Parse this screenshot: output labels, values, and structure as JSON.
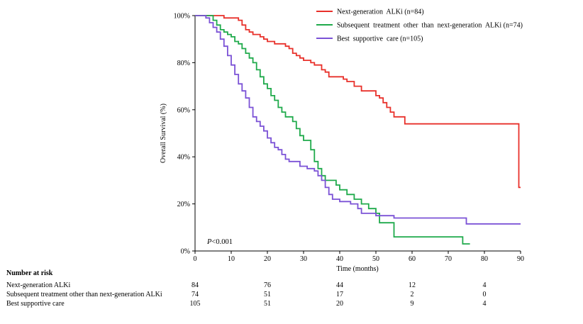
{
  "chart_data": {
    "type": "line",
    "xlabel": "Time (months)",
    "ylabel": "Overall Survival (%)",
    "xlim": [
      0,
      90
    ],
    "ylim": [
      0,
      100
    ],
    "x_ticks": [
      0,
      10,
      20,
      30,
      40,
      50,
      60,
      70,
      80,
      90
    ],
    "x_tick_labels": [
      "0",
      "10",
      "20",
      "30",
      "40",
      "50",
      "60",
      "70",
      "80",
      "90"
    ],
    "y_ticks": [
      0,
      20,
      40,
      60,
      80,
      100
    ],
    "y_tick_labels": [
      "0%",
      "20%",
      "40%",
      "60%",
      "80%",
      "100%"
    ],
    "annotation": "P<0.001",
    "annotation_italic": "P",
    "annotation_rest": "<0.001",
    "legend_position": "top-right",
    "series": [
      {
        "name": "Next-generation  ALKi (n=84)",
        "color": "#e8302a",
        "points": [
          [
            0,
            100
          ],
          [
            8,
            100
          ],
          [
            8,
            99
          ],
          [
            12,
            99
          ],
          [
            12,
            98
          ],
          [
            13,
            98
          ],
          [
            13,
            96
          ],
          [
            14,
            96
          ],
          [
            14,
            94
          ],
          [
            15,
            94
          ],
          [
            15,
            93
          ],
          [
            16,
            93
          ],
          [
            16,
            92
          ],
          [
            18,
            92
          ],
          [
            18,
            91
          ],
          [
            19,
            91
          ],
          [
            19,
            90
          ],
          [
            20,
            90
          ],
          [
            20,
            89
          ],
          [
            22,
            89
          ],
          [
            22,
            88
          ],
          [
            25,
            88
          ],
          [
            25,
            87
          ],
          [
            26,
            87
          ],
          [
            26,
            86
          ],
          [
            27,
            86
          ],
          [
            27,
            84
          ],
          [
            28,
            84
          ],
          [
            28,
            83
          ],
          [
            29,
            83
          ],
          [
            29,
            82
          ],
          [
            30,
            82
          ],
          [
            30,
            81
          ],
          [
            32,
            81
          ],
          [
            32,
            80
          ],
          [
            33,
            80
          ],
          [
            33,
            79
          ],
          [
            35,
            79
          ],
          [
            35,
            77
          ],
          [
            36,
            77
          ],
          [
            36,
            76
          ],
          [
            37,
            76
          ],
          [
            37,
            74
          ],
          [
            41,
            74
          ],
          [
            41,
            73
          ],
          [
            42,
            73
          ],
          [
            42,
            72
          ],
          [
            44,
            72
          ],
          [
            44,
            70
          ],
          [
            46,
            70
          ],
          [
            46,
            68
          ],
          [
            50,
            68
          ],
          [
            50,
            66
          ],
          [
            51,
            66
          ],
          [
            51,
            65
          ],
          [
            52,
            65
          ],
          [
            52,
            63
          ],
          [
            53,
            63
          ],
          [
            53,
            61
          ],
          [
            54,
            61
          ],
          [
            54,
            59
          ],
          [
            55,
            59
          ],
          [
            55,
            57
          ],
          [
            58,
            57
          ],
          [
            58,
            54
          ],
          [
            89.5,
            54
          ],
          [
            89.5,
            27
          ],
          [
            90,
            27
          ]
        ]
      },
      {
        "name": "Subsequent  treatment  other  than  next-generation  ALKi (n=74)",
        "color": "#1faa4b",
        "points": [
          [
            0,
            100
          ],
          [
            5,
            100
          ],
          [
            5,
            98
          ],
          [
            6,
            98
          ],
          [
            6,
            96
          ],
          [
            7,
            96
          ],
          [
            7,
            94
          ],
          [
            8,
            94
          ],
          [
            8,
            93
          ],
          [
            9,
            93
          ],
          [
            9,
            92
          ],
          [
            10,
            92
          ],
          [
            10,
            91
          ],
          [
            11,
            91
          ],
          [
            11,
            89
          ],
          [
            12,
            89
          ],
          [
            12,
            88
          ],
          [
            13,
            88
          ],
          [
            13,
            86
          ],
          [
            14,
            86
          ],
          [
            14,
            84
          ],
          [
            15,
            84
          ],
          [
            15,
            82
          ],
          [
            16,
            82
          ],
          [
            16,
            80
          ],
          [
            17,
            80
          ],
          [
            17,
            77
          ],
          [
            18,
            77
          ],
          [
            18,
            74
          ],
          [
            19,
            74
          ],
          [
            19,
            71
          ],
          [
            20,
            71
          ],
          [
            20,
            69
          ],
          [
            21,
            69
          ],
          [
            21,
            66
          ],
          [
            22,
            66
          ],
          [
            22,
            64
          ],
          [
            23,
            64
          ],
          [
            23,
            61
          ],
          [
            24,
            61
          ],
          [
            24,
            59
          ],
          [
            25,
            59
          ],
          [
            25,
            57
          ],
          [
            27,
            57
          ],
          [
            27,
            55
          ],
          [
            28,
            55
          ],
          [
            28,
            52
          ],
          [
            29,
            52
          ],
          [
            29,
            49
          ],
          [
            30,
            49
          ],
          [
            30,
            47
          ],
          [
            32,
            47
          ],
          [
            32,
            43
          ],
          [
            33,
            43
          ],
          [
            33,
            38
          ],
          [
            34,
            38
          ],
          [
            34,
            35
          ],
          [
            35,
            35
          ],
          [
            35,
            32
          ],
          [
            36,
            32
          ],
          [
            36,
            30
          ],
          [
            39,
            30
          ],
          [
            39,
            28
          ],
          [
            40,
            28
          ],
          [
            40,
            26
          ],
          [
            42,
            26
          ],
          [
            42,
            24
          ],
          [
            44,
            24
          ],
          [
            44,
            22
          ],
          [
            46,
            22
          ],
          [
            46,
            20
          ],
          [
            48,
            20
          ],
          [
            48,
            18
          ],
          [
            50,
            18
          ],
          [
            50,
            16
          ],
          [
            51,
            16
          ],
          [
            51,
            12
          ],
          [
            55,
            12
          ],
          [
            55,
            6
          ],
          [
            74,
            6
          ],
          [
            74,
            3
          ],
          [
            76,
            3
          ]
        ]
      },
      {
        "name": "Best  supportive  care (n=105)",
        "color": "#7b52d6",
        "points": [
          [
            0,
            100
          ],
          [
            3,
            100
          ],
          [
            3,
            99
          ],
          [
            4,
            99
          ],
          [
            4,
            97
          ],
          [
            5,
            97
          ],
          [
            5,
            95
          ],
          [
            6,
            95
          ],
          [
            6,
            93
          ],
          [
            7,
            93
          ],
          [
            7,
            90
          ],
          [
            8,
            90
          ],
          [
            8,
            87
          ],
          [
            9,
            87
          ],
          [
            9,
            83
          ],
          [
            10,
            83
          ],
          [
            10,
            79
          ],
          [
            11,
            79
          ],
          [
            11,
            75
          ],
          [
            12,
            75
          ],
          [
            12,
            71
          ],
          [
            13,
            71
          ],
          [
            13,
            68
          ],
          [
            14,
            68
          ],
          [
            14,
            65
          ],
          [
            15,
            65
          ],
          [
            15,
            61
          ],
          [
            16,
            61
          ],
          [
            16,
            57
          ],
          [
            17,
            57
          ],
          [
            17,
            55
          ],
          [
            18,
            55
          ],
          [
            18,
            53
          ],
          [
            19,
            53
          ],
          [
            19,
            51
          ],
          [
            20,
            51
          ],
          [
            20,
            48
          ],
          [
            21,
            48
          ],
          [
            21,
            46
          ],
          [
            22,
            46
          ],
          [
            22,
            44
          ],
          [
            23,
            44
          ],
          [
            23,
            43
          ],
          [
            24,
            43
          ],
          [
            24,
            41
          ],
          [
            25,
            41
          ],
          [
            25,
            39
          ],
          [
            26,
            39
          ],
          [
            26,
            38
          ],
          [
            29,
            38
          ],
          [
            29,
            36
          ],
          [
            31,
            36
          ],
          [
            31,
            35
          ],
          [
            33,
            35
          ],
          [
            33,
            34
          ],
          [
            34,
            34
          ],
          [
            34,
            32
          ],
          [
            35,
            32
          ],
          [
            35,
            30
          ],
          [
            36,
            30
          ],
          [
            36,
            27
          ],
          [
            37,
            27
          ],
          [
            37,
            24
          ],
          [
            38,
            24
          ],
          [
            38,
            22
          ],
          [
            40,
            22
          ],
          [
            40,
            21
          ],
          [
            43,
            21
          ],
          [
            43,
            20
          ],
          [
            45,
            20
          ],
          [
            45,
            18
          ],
          [
            46,
            18
          ],
          [
            46,
            16
          ],
          [
            50,
            16
          ],
          [
            50,
            15
          ],
          [
            55,
            15
          ],
          [
            55,
            14
          ],
          [
            75,
            14
          ],
          [
            75,
            11.5
          ],
          [
            90,
            11.5
          ]
        ]
      }
    ]
  },
  "risk_table": {
    "title": "Number at risk",
    "times": [
      0,
      20,
      40,
      60,
      80
    ],
    "rows": [
      {
        "label": "Next-generation  ALKi",
        "values": [
          "84",
          "76",
          "44",
          "12",
          "4"
        ]
      },
      {
        "label": "Subsequent treatment other than next-generation ALKi",
        "values": [
          "74",
          "51",
          "17",
          "2",
          "0"
        ]
      },
      {
        "label": "Best supportive care",
        "values": [
          "105",
          "51",
          "20",
          "9",
          "4"
        ]
      }
    ]
  }
}
